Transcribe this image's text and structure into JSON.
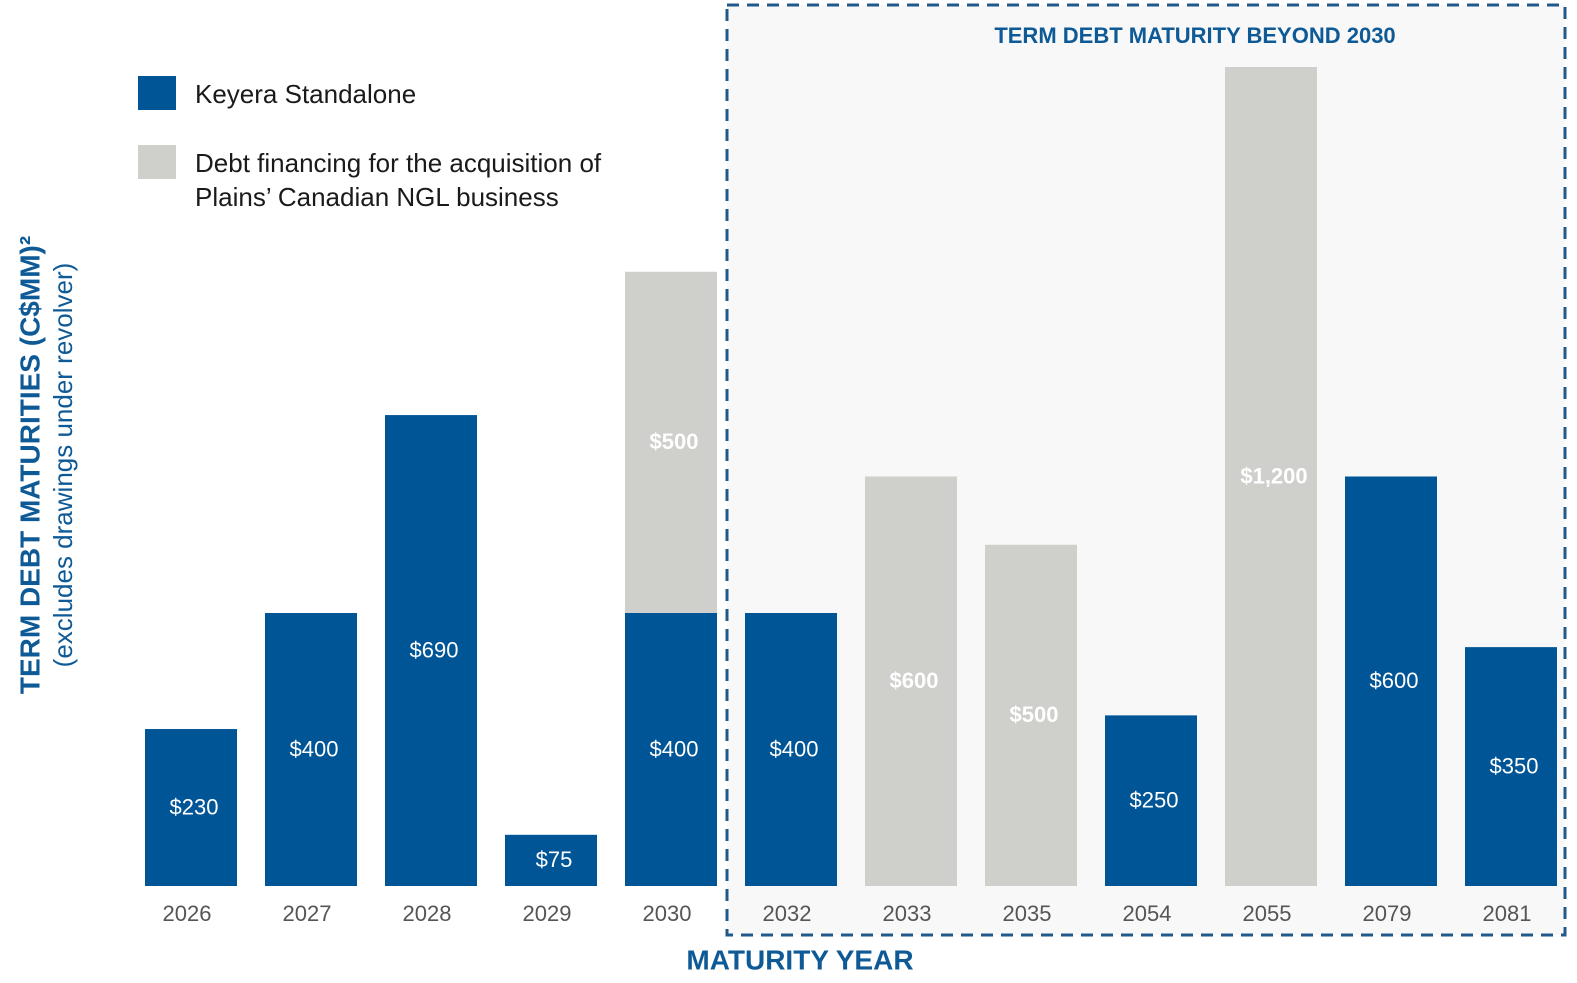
{
  "chart_data": {
    "type": "stacked_bar",
    "annotation": "TERM DEBT MATURITY BEYOND 2030",
    "x_label": "MATURITY YEAR",
    "y_label": "TERM DEBT MATURITIES (C$MM)²",
    "y_sublabel": "(excludes drawings under revolver)",
    "categories": [
      "2026",
      "2027",
      "2028",
      "2029",
      "2030",
      "2032",
      "2033",
      "2035",
      "2054",
      "2055",
      "2079",
      "2081"
    ],
    "series": [
      {
        "name": "Keyera Standalone",
        "color": "#005596",
        "values": [
          230,
          400,
          690,
          75,
          400,
          400,
          null,
          null,
          250,
          null,
          600,
          350
        ],
        "value_labels": [
          "$230",
          "$400",
          "$690",
          "$75",
          "$400",
          "$400",
          null,
          null,
          "$250",
          null,
          "$600",
          "$350"
        ]
      },
      {
        "name": "Debt financing for the acquisition of Plains’ Canadian NGL business",
        "color": "#cfd0cc",
        "values": [
          null,
          null,
          null,
          null,
          500,
          null,
          600,
          500,
          null,
          1200,
          null,
          null
        ],
        "value_labels": [
          null,
          null,
          null,
          null,
          "$500",
          null,
          "$600",
          "$500",
          null,
          "$1,200",
          null,
          null
        ]
      }
    ]
  }
}
